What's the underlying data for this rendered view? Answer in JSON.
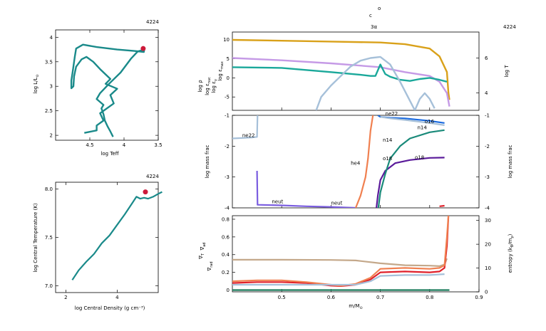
{
  "header": {
    "model_number_hr": "4224",
    "model_number_tc": "4224",
    "model_number_main": "4224",
    "symbol_top": "o",
    "symbol_mid": "c",
    "symbol_line2": "3α"
  },
  "chart_data": [
    {
      "id": "hr",
      "type": "line",
      "title": "4224",
      "xlabel": "log Teff",
      "ylabel": "log L/L",
      "ylabel_sub": "⊙",
      "xlim": [
        5.0,
        3.5
      ],
      "ylim": [
        1.9,
        4.15
      ],
      "x_ticks": [
        4.5,
        4.0,
        3.5
      ],
      "x_tick_labels": [
        "4.5",
        "4",
        "3.5"
      ],
      "y_ticks": [
        2.0,
        2.5,
        3.0,
        3.5,
        4.0
      ],
      "y_tick_labels": [
        "2",
        "2.5",
        "3",
        "3.5",
        "4"
      ],
      "line_color": "#1a8a8a",
      "x": [
        4.16,
        4.2,
        4.24,
        4.28,
        4.3,
        4.33,
        4.3,
        4.4,
        4.35,
        4.22,
        4.05,
        3.9,
        3.8,
        3.75,
        3.72,
        3.7,
        3.71,
        3.85,
        4.1,
        4.4,
        4.6,
        4.7,
        4.72,
        4.75,
        4.77,
        4.77,
        4.74,
        4.73,
        4.7,
        4.62,
        4.55,
        4.45,
        4.35,
        4.2,
        4.27,
        4.1,
        4.2,
        4.15,
        4.35,
        4.3,
        4.4,
        4.4,
        4.58
      ],
      "y": [
        1.97,
        2.08,
        2.18,
        2.3,
        2.43,
        2.55,
        2.62,
        2.74,
        2.86,
        3.05,
        3.28,
        3.56,
        3.71,
        3.73,
        3.75,
        3.78,
        3.7,
        3.72,
        3.75,
        3.8,
        3.85,
        3.77,
        3.6,
        3.3,
        3.12,
        2.96,
        3.0,
        3.2,
        3.4,
        3.55,
        3.6,
        3.5,
        3.35,
        3.15,
        3.05,
        2.95,
        2.82,
        2.65,
        2.45,
        2.3,
        2.2,
        2.1,
        2.05
      ],
      "marker": {
        "x": 3.72,
        "y": 3.77,
        "color": "#cc1a3a"
      }
    },
    {
      "id": "central",
      "type": "line",
      "title": "4224",
      "xlabel": "log Central Density (g cm⁻³)",
      "ylabel": "log Central Temperature (K)",
      "xlim": [
        1.6,
        5.6
      ],
      "ylim": [
        6.93,
        8.07
      ],
      "x_ticks": [
        2,
        4
      ],
      "x_tick_labels": [
        "2",
        "4"
      ],
      "x_ticks_extra": [
        6
      ],
      "y_ticks": [
        7.0,
        7.5,
        8.0
      ],
      "y_tick_labels": [
        "7.0",
        "7.5",
        "8.0"
      ],
      "line_color": "#1a8a8a",
      "x": [
        2.25,
        2.5,
        2.8,
        3.1,
        3.4,
        3.7,
        4.0,
        4.3,
        4.6,
        4.75,
        4.9,
        5.05,
        5.2,
        5.4,
        5.6,
        5.75
      ],
      "y": [
        7.06,
        7.16,
        7.25,
        7.33,
        7.44,
        7.52,
        7.63,
        7.74,
        7.86,
        7.92,
        7.9,
        7.91,
        7.9,
        7.92,
        7.95,
        7.97
      ],
      "marker": {
        "x": 5.1,
        "y": 7.97,
        "color": "#cc1a3a"
      }
    },
    {
      "id": "profile-top",
      "type": "line",
      "xlim": [
        0.4,
        0.9
      ],
      "ylim": [
        -8.5,
        12.0
      ],
      "y_ticks": [
        -5,
        0,
        5,
        10
      ],
      "y_tick_labels": [
        "-5",
        "0",
        "5",
        "10"
      ],
      "y2lim": [
        3.0,
        7.5
      ],
      "y2_ticks": [
        4,
        6
      ],
      "y2_tick_labels": [
        "4",
        "6"
      ],
      "legend_left": [
        {
          "text": "log ρ",
          "color": "#c59ae6"
        },
        {
          "text": "log ε",
          "sub": "nuc",
          "color": "#1aa89a"
        },
        {
          "text": "log ε",
          "sub": "ν",
          "color": "#1aa89a"
        },
        {
          "text": "log ε",
          "sub": "max",
          "color": "#a6c0d9"
        }
      ],
      "label_right": {
        "text": "log T",
        "color": "#d9a11a"
      },
      "series": [
        {
          "name": "log T",
          "color": "#d9a11a",
          "axis": "y2",
          "x": [
            0.4,
            0.5,
            0.6,
            0.7,
            0.75,
            0.8,
            0.82,
            0.835,
            0.838,
            0.84
          ],
          "y": [
            7.05,
            7.0,
            6.95,
            6.9,
            6.8,
            6.55,
            6.1,
            5.2,
            4.0,
            3.6
          ]
        },
        {
          "name": "log ρ",
          "color": "#c59ae6",
          "axis": "y",
          "x": [
            0.4,
            0.5,
            0.6,
            0.7,
            0.75,
            0.8,
            0.82,
            0.835,
            0.84
          ],
          "y": [
            5.2,
            4.6,
            3.8,
            2.8,
            1.5,
            0.5,
            -1.0,
            -4.0,
            -7.5
          ]
        },
        {
          "name": "log ε",
          "color": "#1aa89a",
          "axis": "y",
          "x": [
            0.4,
            0.5,
            0.6,
            0.66,
            0.68,
            0.69,
            0.7,
            0.71,
            0.72,
            0.74,
            0.76,
            0.78,
            0.8,
            0.82,
            0.835
          ],
          "y": [
            2.8,
            2.6,
            1.5,
            0.8,
            0.5,
            0.5,
            3.5,
            1.0,
            0.3,
            -0.5,
            -0.8,
            -0.3,
            0.0,
            -0.5,
            -1.0
          ]
        },
        {
          "name": "log ε",
          "color": "#a6c0d9",
          "axis": "y",
          "x": [
            0.57,
            0.58,
            0.6,
            0.62,
            0.64,
            0.66,
            0.68,
            0.7,
            0.72,
            0.74,
            0.76,
            0.77,
            0.78,
            0.79,
            0.8,
            0.81
          ],
          "y": [
            -8.5,
            -5.0,
            -2.0,
            0.5,
            3.0,
            4.5,
            5.2,
            5.5,
            3.5,
            -1.0,
            -6.0,
            -8.5,
            -5.5,
            -4.0,
            -5.5,
            -8.0
          ]
        }
      ]
    },
    {
      "id": "profile-mid",
      "type": "line",
      "xlim": [
        0.4,
        0.9
      ],
      "ylim": [
        -4.0,
        -1.0
      ],
      "y_ticks": [
        -1,
        -2,
        -3,
        -4
      ],
      "y_tick_labels": [
        "-1",
        "-2",
        "-3",
        "-4"
      ],
      "y2_tick_labels": [
        "-1",
        "-2",
        "-3",
        "-4"
      ],
      "ylabel": "log mass frac",
      "ylabel_right": "log mass frac",
      "series": [
        {
          "name": "ne22",
          "color": "#a6c0d9",
          "x": [
            0.4,
            0.44,
            0.45,
            0.451
          ],
          "y": [
            -1.75,
            -1.72,
            -1.7,
            -1.0
          ]
        },
        {
          "name": "neut",
          "color": "#7a5de0",
          "x": [
            0.45,
            0.451,
            0.452,
            0.5,
            0.55,
            0.6,
            0.65
          ],
          "y": [
            -2.8,
            -3.9,
            -3.9,
            -3.92,
            -3.95,
            -3.97,
            -4.0
          ]
        },
        {
          "name": "he4",
          "color": "#f08050",
          "x": [
            0.65,
            0.66,
            0.67,
            0.675,
            0.68,
            0.685
          ],
          "y": [
            -4.0,
            -3.6,
            -3.0,
            -2.4,
            -1.5,
            -1.0
          ]
        },
        {
          "name": "o18",
          "color": "#5a1a9a",
          "x": [
            0.692,
            0.695,
            0.7,
            0.71,
            0.73,
            0.76,
            0.8,
            0.83
          ],
          "y": [
            -4.0,
            -3.6,
            -3.1,
            -2.8,
            -2.55,
            -2.45,
            -2.38,
            -2.37
          ]
        },
        {
          "name": "n14",
          "color": "#1a8a7a",
          "x": [
            0.696,
            0.7,
            0.71,
            0.72,
            0.74,
            0.76,
            0.8,
            0.83
          ],
          "y": [
            -4.0,
            -3.5,
            -2.9,
            -2.4,
            -2.0,
            -1.75,
            -1.55,
            -1.48
          ]
        },
        {
          "name": "o16",
          "color": "#1a6ae0",
          "x": [
            0.695,
            0.7,
            0.72,
            0.75,
            0.8,
            0.83
          ],
          "y": [
            -1.0,
            -1.05,
            -1.08,
            -1.1,
            -1.18,
            -1.25
          ]
        },
        {
          "name": "ne22",
          "color": "#a6c0d9",
          "x": [
            0.7,
            0.72,
            0.75,
            0.8,
            0.83
          ],
          "y": [
            -1.05,
            -1.1,
            -1.15,
            -1.25,
            -1.32
          ]
        },
        {
          "name": "red",
          "color": "#e0202a",
          "x": [
            0.82,
            0.83
          ],
          "y": [
            -3.95,
            -3.93
          ]
        }
      ],
      "annotations": [
        {
          "text": "ne22",
          "color": "#a6c0d9",
          "x": 0.42,
          "y": -1.7
        },
        {
          "text": "neut",
          "color": "#7a5de0",
          "x": 0.48,
          "y": -3.85
        },
        {
          "text": "neut",
          "color": "#7a5de0",
          "x": 0.6,
          "y": -3.9
        },
        {
          "text": "he4",
          "color": "#f08050",
          "x": 0.64,
          "y": -2.6
        },
        {
          "text": "o18",
          "color": "#5a1a9a",
          "x": 0.705,
          "y": -2.45
        },
        {
          "text": "o18",
          "color": "#5a1a9a",
          "x": 0.77,
          "y": -2.42
        },
        {
          "text": "n14",
          "color": "#1a8a7a",
          "x": 0.705,
          "y": -1.85
        },
        {
          "text": "n14",
          "color": "#1a8a7a",
          "x": 0.775,
          "y": -1.45
        },
        {
          "text": "o16",
          "color": "#1a6ae0",
          "x": 0.79,
          "y": -1.25
        },
        {
          "text": "ne22",
          "color": "#a6c0d9",
          "x": 0.71,
          "y": -1.0
        }
      ]
    },
    {
      "id": "profile-bot",
      "type": "line",
      "xlim": [
        0.4,
        0.9
      ],
      "ylim": [
        -0.02,
        0.84
      ],
      "y_ticks": [
        0,
        0.2,
        0.4,
        0.6,
        0.8
      ],
      "y_tick_labels": [
        "0",
        "0.2",
        "0.4",
        "0.6",
        "0.8"
      ],
      "y2lim": [
        0,
        32
      ],
      "y2_ticks": [
        0,
        10,
        20,
        30
      ],
      "y2_tick_labels": [
        "0",
        "10",
        "20",
        "30"
      ],
      "x_ticks": [
        0.5,
        0.6,
        0.7,
        0.8,
        0.9
      ],
      "x_tick_labels": [
        "0.5",
        "0.6",
        "0.7",
        "0.8",
        "0.9"
      ],
      "xlabel": "m/M",
      "xlabel_sub": "⊙",
      "legend_left": [
        {
          "text": "∇",
          "sub": "ad",
          "color": "#f08050"
        },
        {
          "text": "∇",
          "sub": "T",
          "color": "#e0202a"
        },
        {
          "text": "∇",
          "sub": "rad",
          "color": "#f08050"
        }
      ],
      "ylabel_right": "entropy (k",
      "ylabel_right_rest": "/m",
      "ylabel_right_subs": [
        "B",
        "p"
      ],
      "series": [
        {
          "name": "entropy",
          "color": "#c4a88a",
          "axis": "y2",
          "x": [
            0.4,
            0.5,
            0.6,
            0.65,
            0.7,
            0.75,
            0.8,
            0.82,
            0.83,
            0.835
          ],
          "y": [
            13.5,
            13.5,
            13.4,
            13.2,
            12.0,
            11.2,
            11.0,
            10.8,
            11.5,
            14.0
          ]
        },
        {
          "name": "gradT",
          "color": "#e0202a",
          "axis": "y",
          "x": [
            0.4,
            0.45,
            0.5,
            0.55,
            0.6,
            0.62,
            0.65,
            0.68,
            0.7,
            0.75,
            0.8,
            0.82,
            0.83,
            0.835,
            0.838
          ],
          "y": [
            0.08,
            0.09,
            0.09,
            0.08,
            0.05,
            0.045,
            0.06,
            0.12,
            0.2,
            0.21,
            0.2,
            0.21,
            0.25,
            0.5,
            0.83
          ]
        },
        {
          "name": "gradRad",
          "color": "#f08050",
          "axis": "y",
          "x": [
            0.4,
            0.45,
            0.5,
            0.55,
            0.6,
            0.62,
            0.65,
            0.68,
            0.7,
            0.75,
            0.8,
            0.82,
            0.83,
            0.835,
            0.838
          ],
          "y": [
            0.1,
            0.11,
            0.11,
            0.09,
            0.06,
            0.05,
            0.07,
            0.14,
            0.24,
            0.25,
            0.24,
            0.25,
            0.28,
            0.6,
            0.84
          ]
        },
        {
          "name": "gradAd",
          "color": "#a6c0d9",
          "axis": "y",
          "x": [
            0.4,
            0.5,
            0.6,
            0.65,
            0.68,
            0.7,
            0.75,
            0.8,
            0.83
          ],
          "y": [
            0.06,
            0.06,
            0.06,
            0.06,
            0.1,
            0.16,
            0.17,
            0.17,
            0.18
          ]
        },
        {
          "name": "base",
          "color": "#1a7a5a",
          "axis": "y",
          "x": [
            0.4,
            0.84
          ],
          "y": [
            0.0,
            0.0
          ]
        }
      ]
    }
  ]
}
